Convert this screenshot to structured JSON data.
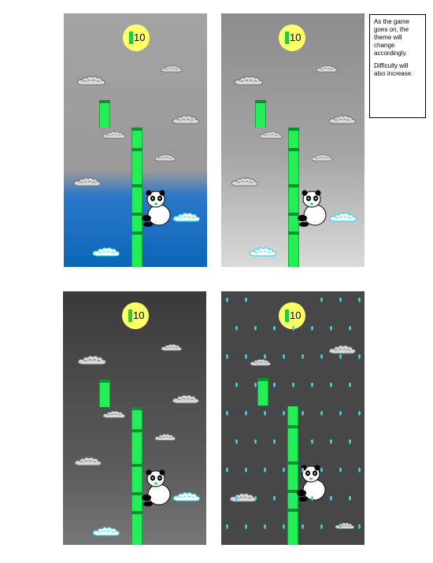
{
  "panels": [
    {
      "name": "panel-day",
      "score": "10"
    },
    {
      "name": "panel-fog",
      "score": "10"
    },
    {
      "name": "panel-dusk",
      "score": "10"
    },
    {
      "name": "panel-rain",
      "score": "10"
    }
  ],
  "note": {
    "line1": "As the game goes on, the theme will change accordingly.",
    "line2": "Difficulty will also increase."
  },
  "colors": {
    "bamboo": "#22ee55",
    "coin": "#ffff66",
    "sea_blue": "#0a66b8",
    "rain": "#2fd6f5"
  },
  "icons": {
    "coin": "bamboo-coin-icon",
    "cloud": "cloud-icon",
    "player": "panda-icon",
    "rain": "raindrop-icon"
  }
}
